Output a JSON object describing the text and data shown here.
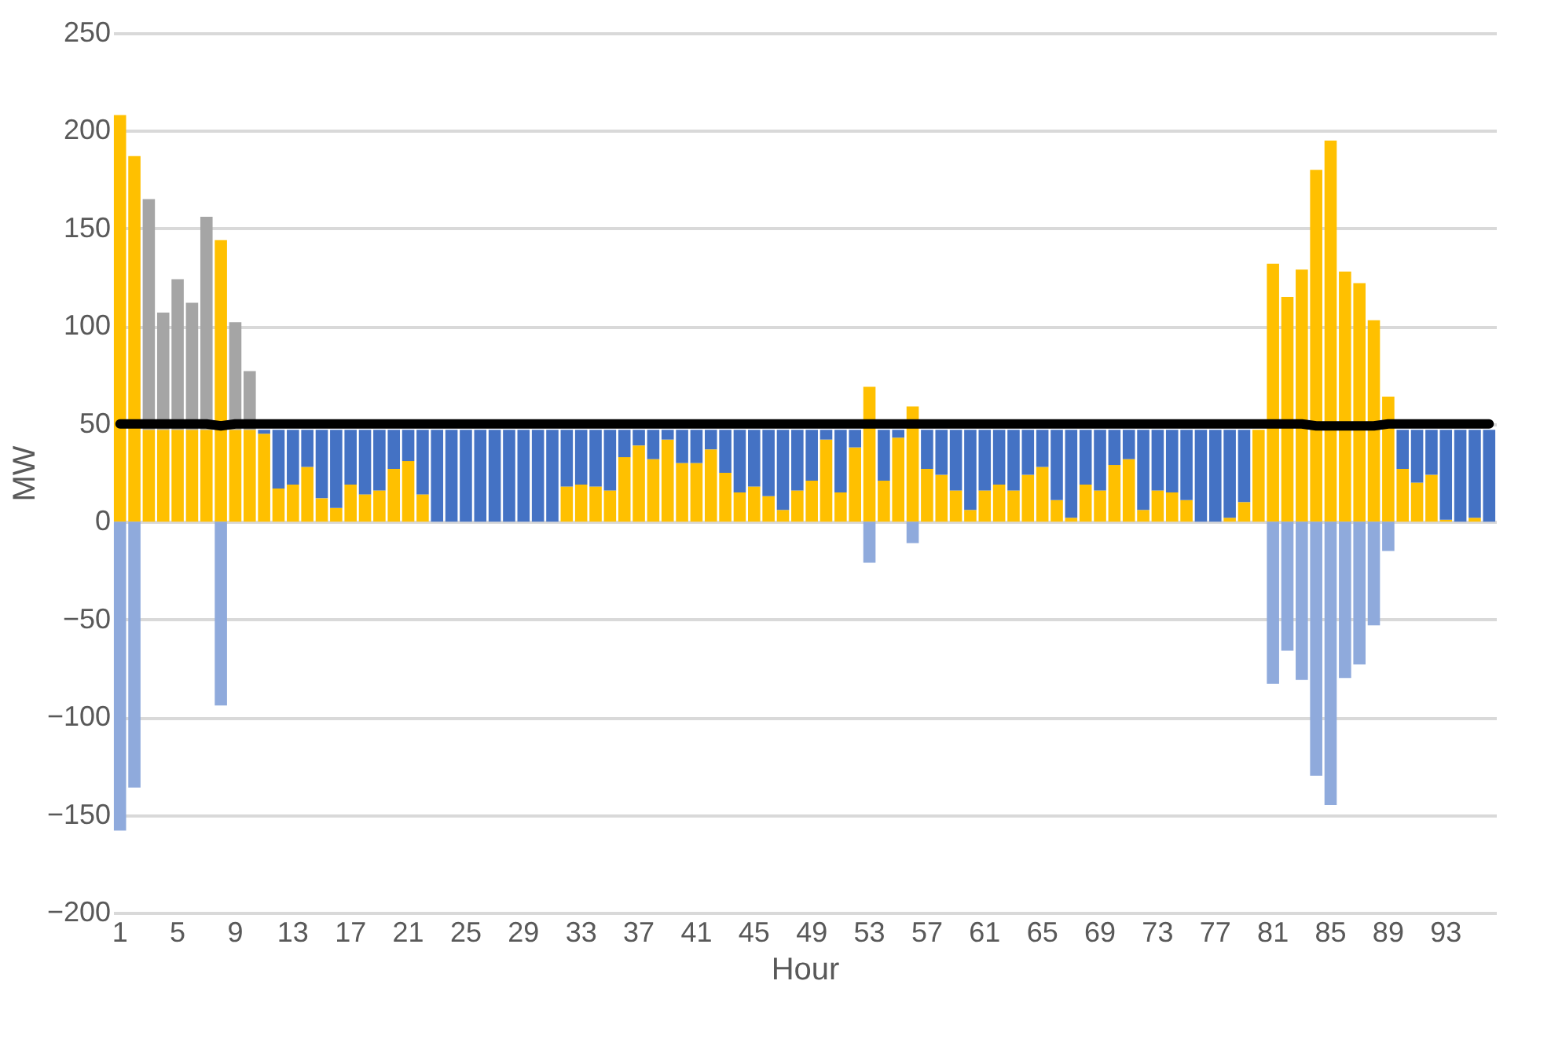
{
  "chart_data": {
    "type": "bar",
    "stacked": true,
    "xlabel": "Hour",
    "ylabel": "MW",
    "categories": [
      "1",
      null,
      null,
      null,
      "5",
      null,
      null,
      null,
      "9",
      null,
      null,
      null,
      "13",
      null,
      null,
      null,
      "17",
      null,
      null,
      null,
      "21",
      null,
      null,
      null,
      "25",
      null,
      null,
      null,
      "29",
      null,
      null,
      null,
      "33",
      null,
      null,
      null,
      "37",
      null,
      null,
      null,
      "41",
      null,
      null,
      null,
      "45",
      null,
      null,
      null,
      "49",
      null,
      null,
      null,
      "53",
      null,
      null,
      null,
      "57",
      null,
      null,
      null,
      "61",
      null,
      null,
      null,
      "65",
      null,
      null,
      null,
      "69",
      null,
      null,
      null,
      "73",
      null,
      null,
      null,
      "77",
      null,
      null,
      null,
      "81",
      null,
      null,
      null,
      "85",
      null,
      null,
      null,
      "89",
      null,
      null,
      null,
      "93",
      null,
      null,
      null
    ],
    "series": [
      {
        "color": "#ffc000",
        "values": [
          208,
          187,
          47,
          47,
          47,
          47,
          47,
          144,
          47,
          47,
          45,
          17,
          19,
          28,
          12,
          7,
          19,
          14,
          16,
          27,
          31,
          14,
          0,
          0,
          0,
          0,
          0,
          0,
          0,
          0,
          0,
          18,
          19,
          18,
          16,
          33,
          39,
          32,
          42,
          30,
          30,
          37,
          25,
          15,
          18,
          13,
          6,
          16,
          21,
          42,
          15,
          38,
          69,
          21,
          43,
          59,
          27,
          24,
          16,
          6,
          16,
          19,
          16,
          24,
          28,
          11,
          2,
          19,
          16,
          29,
          32,
          6,
          16,
          15,
          11,
          0,
          0,
          2,
          10,
          47,
          132,
          115,
          129,
          180,
          195,
          128,
          122,
          103,
          64,
          27,
          20,
          24,
          1,
          0,
          2,
          0
        ]
      },
      {
        "color": "#4472c4",
        "values": [
          0,
          0,
          0,
          0,
          0,
          0,
          0,
          0,
          0,
          0,
          2,
          30,
          28,
          19,
          35,
          40,
          28,
          33,
          31,
          20,
          16,
          33,
          47,
          47,
          47,
          47,
          47,
          47,
          47,
          47,
          47,
          29,
          28,
          29,
          31,
          14,
          8,
          15,
          5,
          17,
          17,
          10,
          22,
          32,
          29,
          34,
          41,
          31,
          26,
          5,
          32,
          9,
          0,
          26,
          4,
          0,
          20,
          23,
          31,
          41,
          31,
          28,
          31,
          23,
          19,
          36,
          45,
          28,
          31,
          18,
          15,
          41,
          31,
          32,
          36,
          47,
          47,
          45,
          37,
          0,
          0,
          0,
          0,
          0,
          0,
          0,
          0,
          0,
          0,
          20,
          27,
          23,
          46,
          47,
          45,
          47
        ]
      },
      {
        "color": "#a5a5a5",
        "values": [
          0,
          0,
          118,
          60,
          77,
          65,
          109,
          0,
          55,
          30,
          null,
          null,
          null,
          null,
          null,
          null,
          null,
          null,
          null,
          null,
          null,
          null,
          null,
          null,
          null,
          null,
          null,
          null,
          null,
          null,
          null,
          null,
          null,
          null,
          null,
          null,
          null,
          null,
          null,
          null,
          null,
          null,
          null,
          null,
          null,
          null,
          null,
          null,
          null,
          null,
          null,
          null,
          null,
          null,
          null,
          null,
          null,
          null,
          null,
          null,
          null,
          null,
          null,
          null,
          null,
          null,
          null,
          null,
          null,
          null,
          null,
          null,
          null,
          null,
          null,
          null,
          null,
          null,
          null,
          null,
          null,
          null,
          null,
          null,
          null,
          null,
          null,
          null,
          null,
          null,
          null,
          null,
          null,
          null,
          null,
          null
        ]
      },
      {
        "color": "#8faadc",
        "values": [
          -158,
          -136,
          null,
          null,
          null,
          null,
          null,
          -94,
          null,
          null,
          null,
          null,
          null,
          null,
          null,
          null,
          null,
          null,
          null,
          null,
          null,
          null,
          null,
          null,
          null,
          null,
          null,
          null,
          null,
          null,
          null,
          null,
          null,
          null,
          null,
          null,
          null,
          null,
          null,
          null,
          null,
          null,
          null,
          null,
          null,
          null,
          null,
          null,
          null,
          null,
          null,
          null,
          -21,
          null,
          null,
          -11,
          null,
          null,
          null,
          null,
          null,
          null,
          null,
          null,
          null,
          null,
          null,
          null,
          null,
          null,
          null,
          null,
          null,
          null,
          null,
          null,
          null,
          null,
          null,
          null,
          -83,
          -66,
          -81,
          -130,
          -145,
          -80,
          -73,
          -53,
          -15,
          null,
          null,
          null,
          null,
          null,
          null,
          null
        ]
      },
      {
        "type": "line",
        "color": "#000000",
        "values": [
          50,
          50,
          50,
          50,
          50,
          50,
          50,
          49,
          50,
          50,
          50,
          50,
          50,
          50,
          50,
          50,
          50,
          50,
          50,
          50,
          50,
          50,
          50,
          50,
          50,
          50,
          50,
          50,
          50,
          50,
          50,
          50,
          50,
          50,
          50,
          50,
          50,
          50,
          50,
          50,
          50,
          50,
          50,
          50,
          50,
          50,
          50,
          50,
          50,
          50,
          50,
          50,
          50,
          50,
          50,
          50,
          50,
          50,
          50,
          50,
          50,
          50,
          50,
          50,
          50,
          50,
          50,
          50,
          50,
          50,
          50,
          50,
          50,
          50,
          50,
          50,
          50,
          50,
          50,
          50,
          50,
          50,
          50,
          49,
          49,
          49,
          49,
          49,
          50,
          50,
          50,
          50,
          50,
          50,
          50,
          50
        ]
      }
    ],
    "ylim": [
      -200,
      250
    ],
    "yticks": [
      -200,
      -150,
      -100,
      -50,
      0,
      50,
      100,
      150,
      200,
      250
    ],
    "grid": "y",
    "legend": false,
    "line_style": "solid",
    "marker": "none"
  }
}
